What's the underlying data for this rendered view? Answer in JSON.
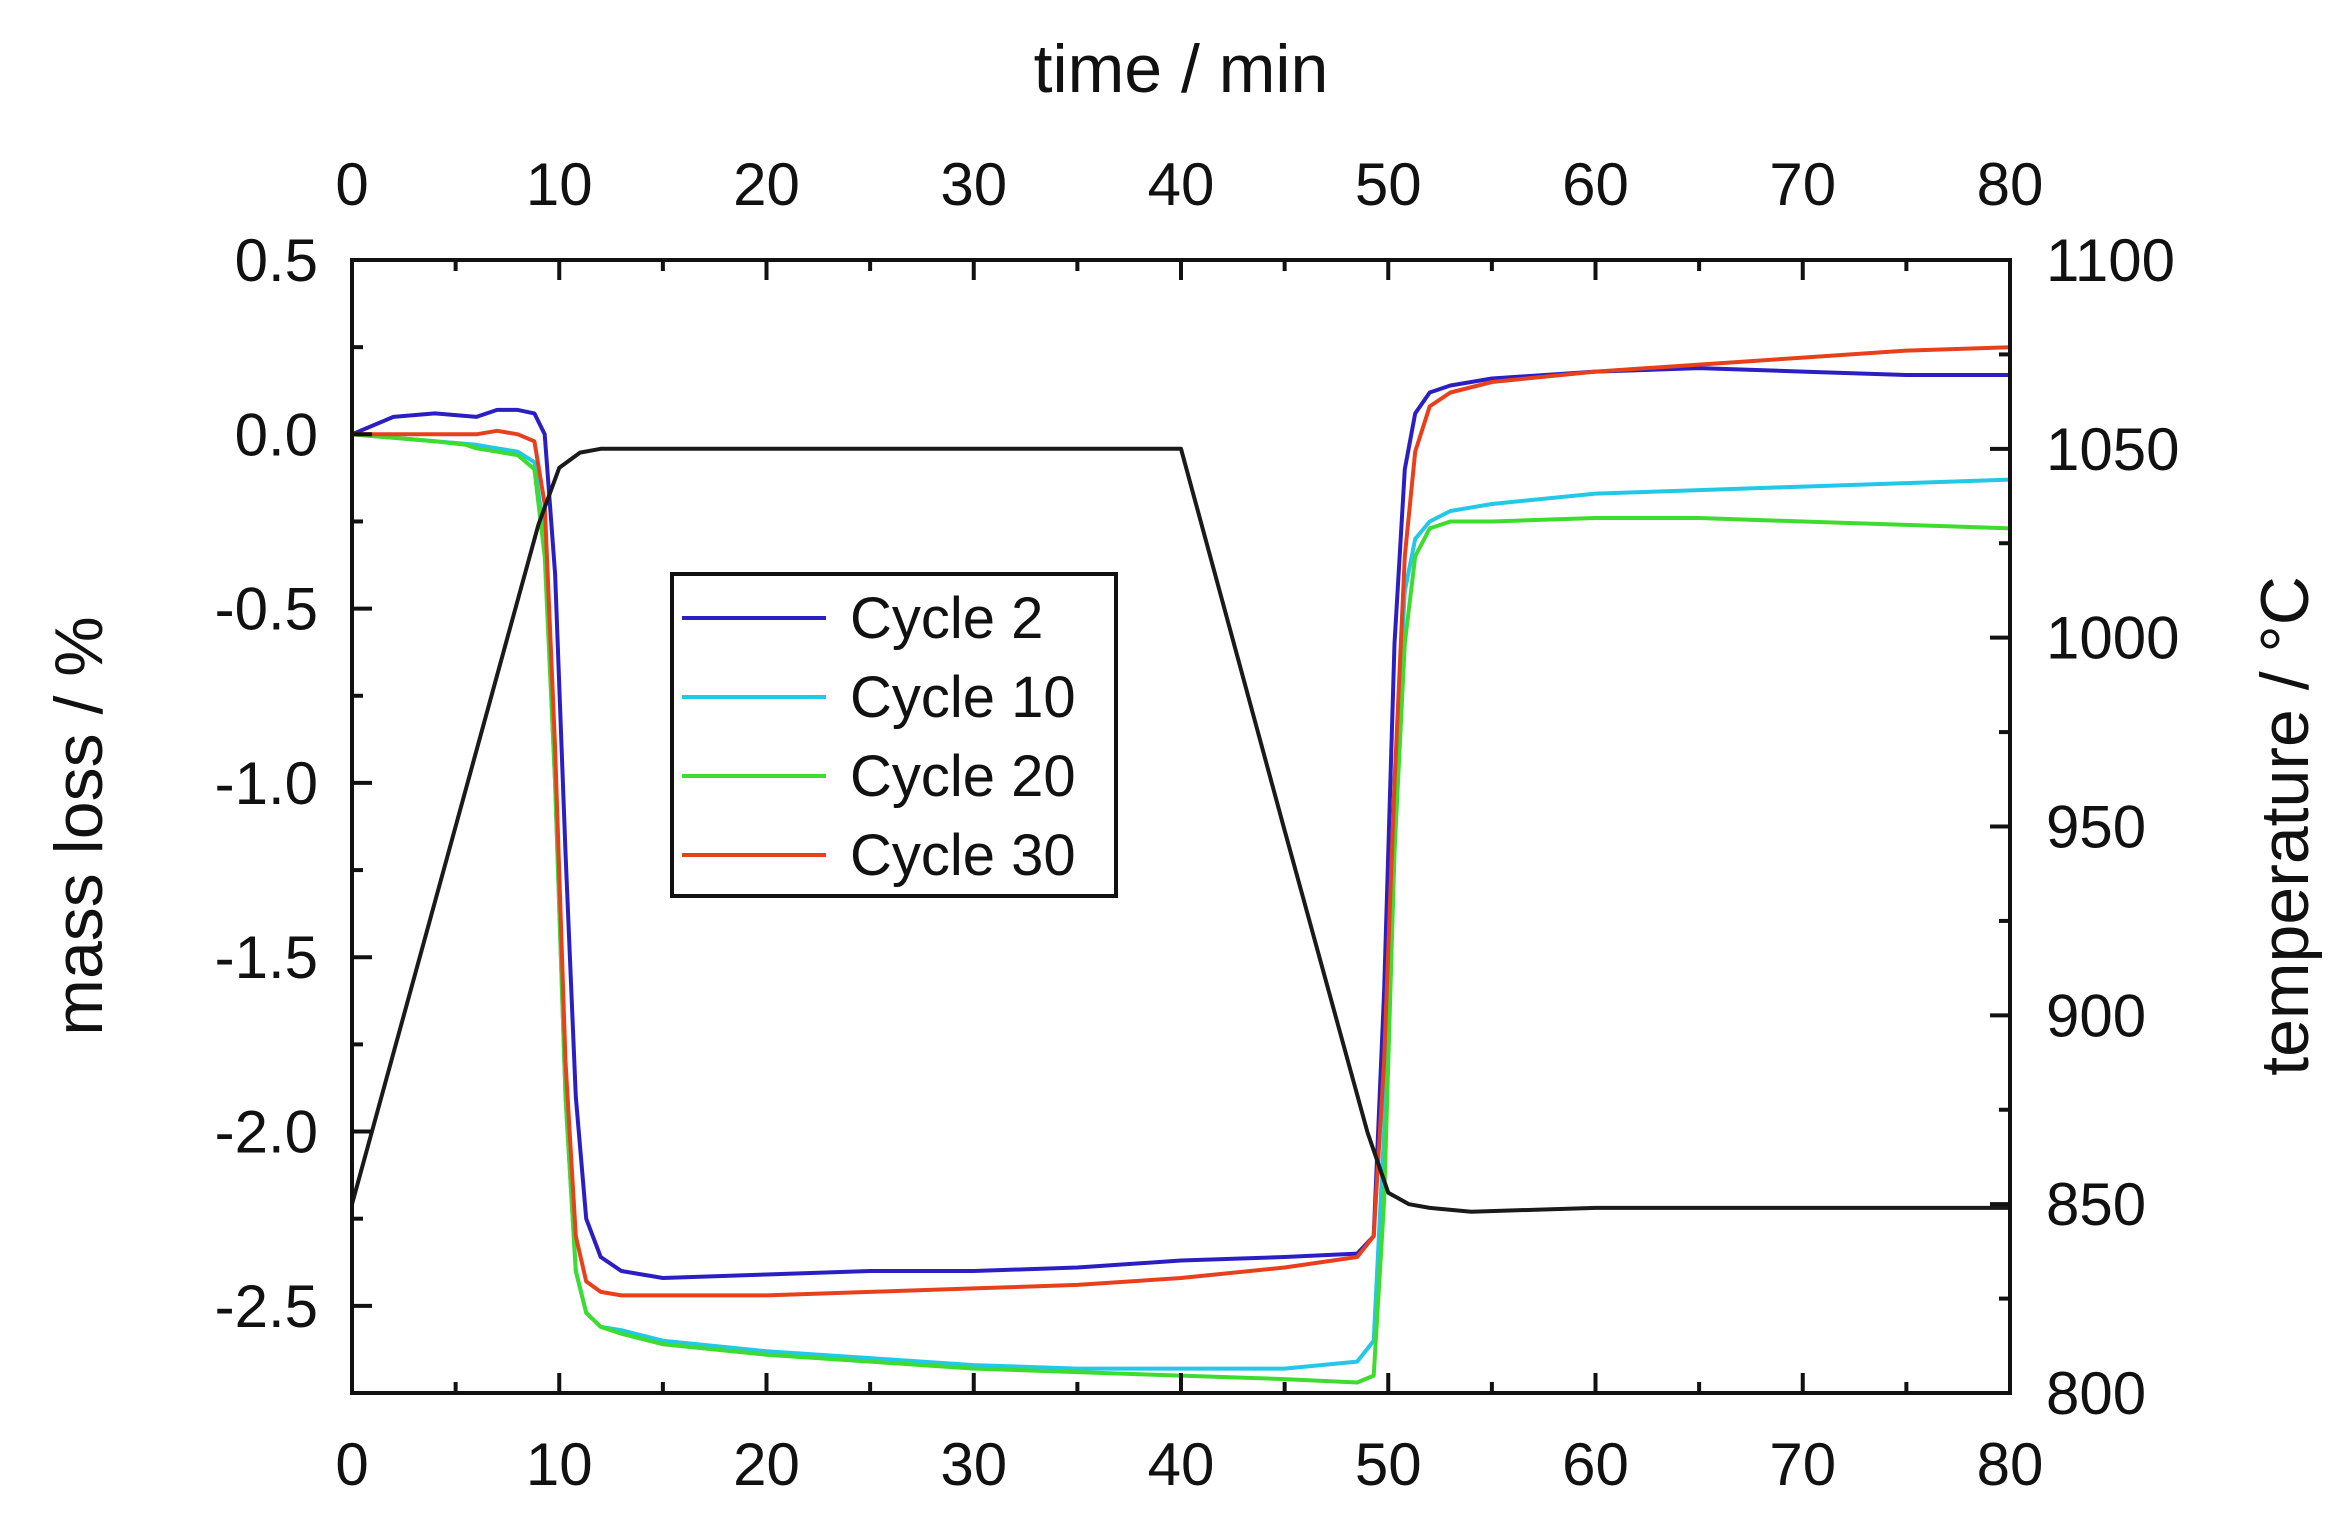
{
  "chart_data": {
    "type": "line",
    "title": "",
    "x_top_label": "time / min",
    "ylabel_left": "mass loss / %",
    "ylabel_right": "temperature / °C",
    "xlim": [
      0,
      80
    ],
    "ylim_left": [
      -2.75,
      0.5
    ],
    "ylim_right": [
      800,
      1100
    ],
    "x_ticks": [
      0,
      10,
      20,
      30,
      40,
      50,
      60,
      70,
      80
    ],
    "x_tick_labels": [
      "0",
      "10",
      "20",
      "30",
      "40",
      "50",
      "60",
      "70",
      "80"
    ],
    "y_left_ticks": [
      0.5,
      0.0,
      -0.5,
      -1.0,
      -1.5,
      -2.0,
      -2.5
    ],
    "y_left_tick_labels": [
      "0.5",
      "0.0",
      "-0.5",
      "-1.0",
      "-1.5",
      "-2.0",
      "-2.5"
    ],
    "y_right_ticks": [
      1100,
      1050,
      1000,
      950,
      900,
      850,
      800
    ],
    "y_right_tick_labels": [
      "1100",
      "1050",
      "1000",
      "950",
      "900",
      "850",
      "800"
    ],
    "legend_position": "center-left",
    "series": [
      {
        "name": "Cycle 2",
        "color": "#2b1fc4",
        "axis": "left",
        "x": [
          0,
          2,
          4,
          6,
          7,
          8,
          8.8,
          9.3,
          9.8,
          10.3,
          10.8,
          11.3,
          12,
          13,
          15,
          20,
          25,
          30,
          35,
          40,
          45,
          48.5,
          49.3,
          49.8,
          50.3,
          50.8,
          51.3,
          52,
          53,
          55,
          60,
          65,
          70,
          75,
          80
        ],
        "y": [
          0.0,
          0.05,
          0.06,
          0.05,
          0.07,
          0.07,
          0.06,
          0.0,
          -0.4,
          -1.2,
          -1.9,
          -2.25,
          -2.36,
          -2.4,
          -2.42,
          -2.41,
          -2.4,
          -2.4,
          -2.39,
          -2.37,
          -2.36,
          -2.35,
          -2.3,
          -1.6,
          -0.6,
          -0.1,
          0.06,
          0.12,
          0.14,
          0.16,
          0.18,
          0.19,
          0.18,
          0.17,
          0.17
        ]
      },
      {
        "name": "Cycle 10",
        "color": "#22c8e6",
        "axis": "left",
        "x": [
          0,
          2,
          4,
          6,
          7,
          8,
          8.8,
          9.3,
          9.8,
          10.3,
          10.8,
          11.3,
          12,
          13,
          15,
          20,
          25,
          30,
          35,
          40,
          45,
          48.5,
          49.3,
          49.8,
          50.3,
          50.8,
          51.3,
          52,
          53,
          55,
          60,
          65,
          70,
          75,
          80
        ],
        "y": [
          0.0,
          -0.01,
          -0.02,
          -0.03,
          -0.04,
          -0.05,
          -0.08,
          -0.3,
          -1.0,
          -1.9,
          -2.4,
          -2.52,
          -2.56,
          -2.57,
          -2.6,
          -2.63,
          -2.65,
          -2.67,
          -2.68,
          -2.68,
          -2.68,
          -2.66,
          -2.6,
          -2.0,
          -1.0,
          -0.45,
          -0.3,
          -0.25,
          -0.22,
          -0.2,
          -0.17,
          -0.16,
          -0.15,
          -0.14,
          -0.13
        ]
      },
      {
        "name": "Cycle 20",
        "color": "#3ddc2e",
        "axis": "left",
        "x": [
          0,
          2,
          4,
          5.5,
          6,
          7,
          8,
          8.8,
          9.3,
          9.8,
          10.3,
          10.8,
          11.3,
          12,
          13,
          15,
          20,
          25,
          30,
          35,
          40,
          45,
          48.5,
          49.3,
          49.8,
          50.3,
          50.8,
          51.3,
          52,
          53,
          55,
          60,
          65,
          70,
          75,
          80
        ],
        "y": [
          0.0,
          -0.01,
          -0.02,
          -0.03,
          -0.04,
          -0.05,
          -0.06,
          -0.1,
          -0.35,
          -1.0,
          -1.9,
          -2.4,
          -2.52,
          -2.56,
          -2.58,
          -2.61,
          -2.64,
          -2.66,
          -2.68,
          -2.69,
          -2.7,
          -2.71,
          -2.72,
          -2.7,
          -2.2,
          -1.2,
          -0.6,
          -0.35,
          -0.27,
          -0.25,
          -0.25,
          -0.24,
          -0.24,
          -0.25,
          -0.26,
          -0.27
        ]
      },
      {
        "name": "Cycle 30",
        "color": "#e8401c",
        "axis": "left",
        "x": [
          0,
          2,
          4,
          6,
          7,
          8,
          8.8,
          9.3,
          9.8,
          10.3,
          10.8,
          11.3,
          12,
          13,
          15,
          20,
          25,
          30,
          35,
          40,
          45,
          48.5,
          49.3,
          49.8,
          50.3,
          50.8,
          51.3,
          52,
          53,
          55,
          60,
          65,
          70,
          75,
          80
        ],
        "y": [
          0.0,
          0.0,
          0.0,
          0.0,
          0.01,
          0.0,
          -0.02,
          -0.2,
          -0.9,
          -1.8,
          -2.3,
          -2.43,
          -2.46,
          -2.47,
          -2.47,
          -2.47,
          -2.46,
          -2.45,
          -2.44,
          -2.42,
          -2.39,
          -2.36,
          -2.3,
          -1.8,
          -1.0,
          -0.35,
          -0.05,
          0.08,
          0.12,
          0.15,
          0.18,
          0.2,
          0.22,
          0.24,
          0.25
        ]
      },
      {
        "name": "temperature",
        "color": "#1a1a1a",
        "axis": "right",
        "in_legend": false,
        "x": [
          0,
          5,
          9,
          10,
          11,
          12,
          15,
          20,
          30,
          40,
          45,
          49,
          50,
          51,
          52,
          54,
          60,
          70,
          80
        ],
        "y": [
          850,
          950,
          1030,
          1045,
          1049,
          1050,
          1050,
          1050,
          1050,
          1050,
          949,
          869,
          853,
          850,
          849,
          848,
          849,
          849,
          849
        ]
      }
    ]
  }
}
